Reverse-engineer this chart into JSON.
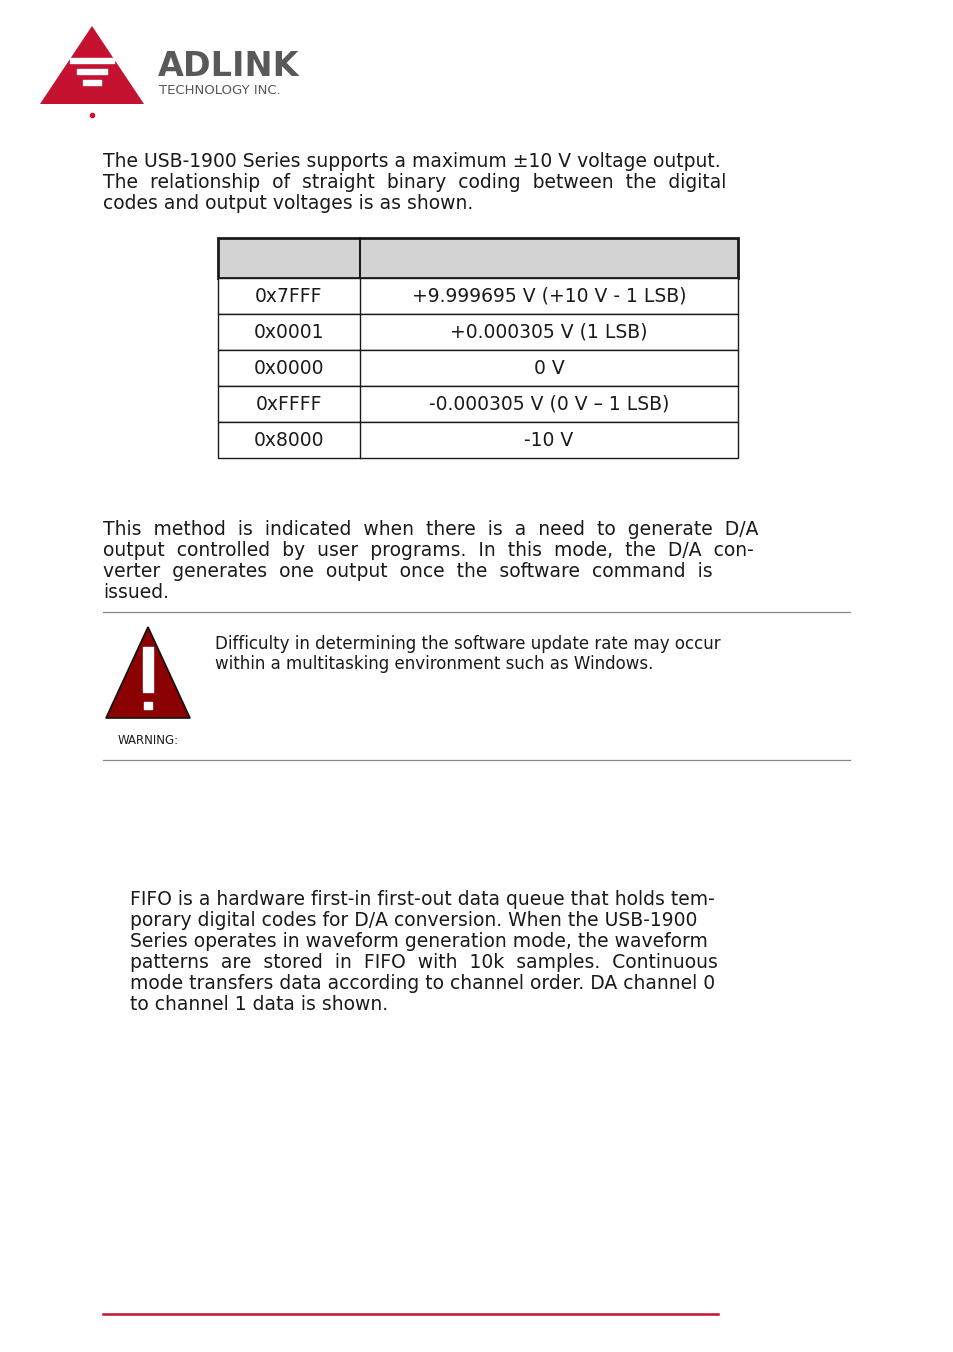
{
  "logo_color": "#c41230",
  "logo_gray": "#595959",
  "page_bg": "#ffffff",
  "para1_line1": "The USB-1900 Series supports a maximum ±10 V voltage output.",
  "para1_line2": "The  relationship  of  straight  binary  coding  between  the  digital",
  "para1_line3": "codes and output voltages is as shown.",
  "table_rows": [
    [
      "0x7FFF",
      "+9.999695 V (+10 V - 1 LSB)"
    ],
    [
      "0x0001",
      "+0.000305 V (1 LSB)"
    ],
    [
      "0x0000",
      "0 V"
    ],
    [
      "0xFFFF",
      "-0.000305 V (0 V – 1 LSB)"
    ],
    [
      "0x8000",
      "-10 V"
    ]
  ],
  "table_header_bg": "#d3d3d3",
  "table_border_color": "#1a1a1a",
  "para2_lines": [
    "This  method  is  indicated  when  there  is  a  need  to  generate  D/A",
    "output  controlled  by  user  programs.  In  this  mode,  the  D/A  con-",
    "verter  generates  one  output  once  the  software  command  is",
    "issued."
  ],
  "warning_title": "WARNING:",
  "warning_text_line1": "Difficulty in determining the software update rate may occur",
  "warning_text_line2": "within a multitasking environment such as Windows.",
  "warning_icon_color": "#8b0000",
  "para3_lines": [
    "FIFO is a hardware first-in first-out data queue that holds tem-",
    "porary digital codes for D/A conversion. When the USB-1900",
    "Series operates in waveform generation mode, the waveform",
    "patterns  are  stored  in  FIFO  with  10k  samples.  Continuous",
    "mode transfers data according to channel order. DA channel 0",
    "to channel 1 data is shown."
  ],
  "footer_line_color": "#c41230",
  "text_color": "#1a1a1a",
  "body_fs": 13.5,
  "warn_fs": 12.0,
  "sep_color": "#888888"
}
